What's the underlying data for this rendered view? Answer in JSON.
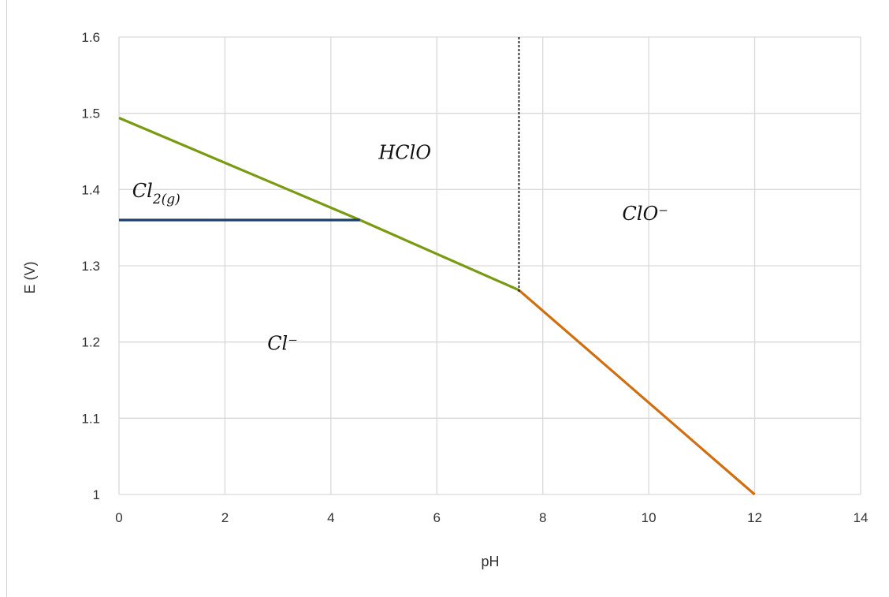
{
  "chart_data": {
    "type": "line",
    "title": "",
    "xlabel": "pH",
    "ylabel": "E (V)",
    "xlim": [
      0,
      14
    ],
    "ylim": [
      1,
      1.6
    ],
    "x_ticks": [
      "0",
      "2",
      "4",
      "6",
      "8",
      "10",
      "12",
      "14"
    ],
    "y_ticks": [
      "1",
      "1.1",
      "1.2",
      "1.3",
      "1.4",
      "1.5",
      "1.6"
    ],
    "grid": true,
    "legend": "none",
    "series": [
      {
        "color": "#7a9a14",
        "points": [
          [
            0,
            1.494
          ],
          [
            4.55,
            1.36
          ],
          [
            7.55,
            1.268
          ]
        ]
      },
      {
        "color": "#1f3f6b",
        "points": [
          [
            0,
            1.36
          ],
          [
            4.55,
            1.36
          ]
        ]
      },
      {
        "color": "#d06e10",
        "points": [
          [
            7.55,
            1.268
          ],
          [
            12,
            1.0
          ]
        ]
      },
      {
        "color": "#000000",
        "dashed": true,
        "points": [
          [
            7.55,
            1.6
          ],
          [
            7.55,
            1.265
          ]
        ]
      }
    ],
    "annotations": [
      {
        "text": "HClO",
        "x": 4.9,
        "y": 1.44
      },
      {
        "text": "Cl",
        "sub": "2(g)",
        "x": 0.25,
        "y": 1.39
      },
      {
        "text": "ClO⁻",
        "x": 9.5,
        "y": 1.36
      },
      {
        "text": "Cl⁻",
        "x": 2.8,
        "y": 1.19
      }
    ]
  }
}
